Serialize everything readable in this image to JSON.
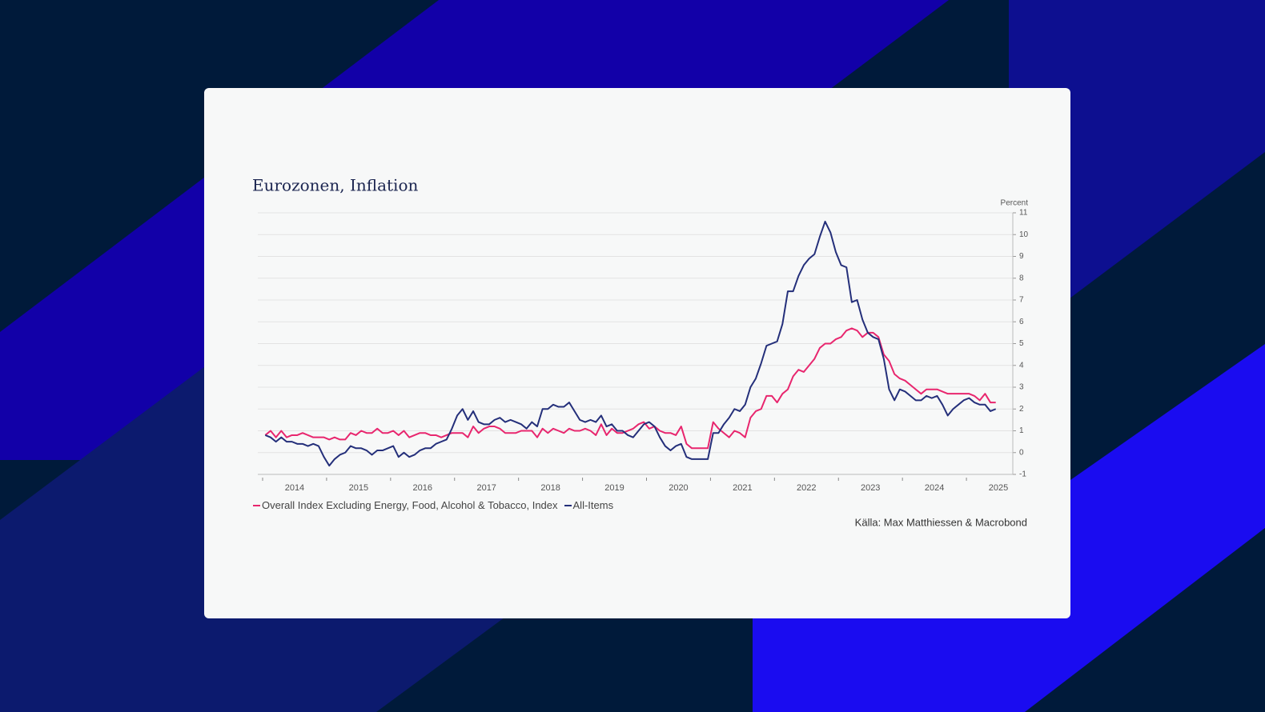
{
  "chart_data": {
    "type": "line",
    "title": "Eurozonen, Inflation",
    "y_label": "Percent",
    "source": "Källa: Max Matthiessen & Macrobond",
    "categories": [
      null,
      null,
      null,
      null,
      null,
      null,
      "2014",
      null,
      null,
      null,
      null,
      null,
      null,
      null,
      null,
      null,
      null,
      null,
      "2015",
      null,
      null,
      null,
      null,
      null,
      null,
      null,
      null,
      null,
      null,
      null,
      "2016",
      null,
      null,
      null,
      null,
      null,
      null,
      null,
      null,
      null,
      null,
      null,
      "2017",
      null,
      null,
      null,
      null,
      null,
      null,
      null,
      null,
      null,
      null,
      null,
      "2018",
      null,
      null,
      null,
      null,
      null,
      null,
      null,
      null,
      null,
      null,
      null,
      "2019",
      null,
      null,
      null,
      null,
      null,
      null,
      null,
      null,
      null,
      null,
      null,
      "2020",
      null,
      null,
      null,
      null,
      null,
      null,
      null,
      null,
      null,
      null,
      null,
      "2021",
      null,
      null,
      null,
      null,
      null,
      null,
      null,
      null,
      null,
      null,
      null,
      "2022",
      null,
      null,
      null,
      null,
      null,
      null,
      null,
      null,
      null,
      null,
      null,
      "2023",
      null,
      null,
      null,
      null,
      null,
      null,
      null,
      null,
      null,
      null,
      null,
      "2024",
      null,
      null,
      null,
      null,
      null,
      null,
      null,
      null,
      null,
      null,
      null,
      "2025",
      null,
      null,
      null,
      null,
      null
    ],
    "series": [
      {
        "name": "Overall Index Excluding Energy, Food, Alcohol & Tobacco, Index",
        "color": "#e8266e",
        "values": [
          0.8,
          1.0,
          0.7,
          1.0,
          0.7,
          0.8,
          0.8,
          0.9,
          0.8,
          0.7,
          0.7,
          0.7,
          0.6,
          0.7,
          0.6,
          0.6,
          0.9,
          0.8,
          1.0,
          0.9,
          0.9,
          1.1,
          0.9,
          0.9,
          1.0,
          0.8,
          1.0,
          0.7,
          0.8,
          0.9,
          0.9,
          0.8,
          0.8,
          0.7,
          0.8,
          0.9,
          0.9,
          0.9,
          0.7,
          1.2,
          0.9,
          1.1,
          1.2,
          1.2,
          1.1,
          0.9,
          0.9,
          0.9,
          1.0,
          1.0,
          1.0,
          0.7,
          1.1,
          0.9,
          1.1,
          1.0,
          0.9,
          1.1,
          1.0,
          1.0,
          1.1,
          1.0,
          0.8,
          1.3,
          0.8,
          1.1,
          0.9,
          0.9,
          1.0,
          1.1,
          1.3,
          1.4,
          1.1,
          1.2,
          1.0,
          0.9,
          0.9,
          0.8,
          1.2,
          0.4,
          0.2,
          0.2,
          0.2,
          0.2,
          1.4,
          1.1,
          0.9,
          0.7,
          1.0,
          0.9,
          0.7,
          1.6,
          1.9,
          2.0,
          2.6,
          2.6,
          2.3,
          2.7,
          2.9,
          3.5,
          3.8,
          3.7,
          4.0,
          4.3,
          4.8,
          5.0,
          5.0,
          5.2,
          5.3,
          5.6,
          5.7,
          5.6,
          5.3,
          5.5,
          5.5,
          5.3,
          4.5,
          4.2,
          3.6,
          3.4,
          3.3,
          3.1,
          2.9,
          2.7,
          2.9,
          2.9,
          2.9,
          2.8,
          2.7,
          2.7,
          2.7,
          2.7,
          2.7,
          2.6,
          2.4,
          2.7,
          2.3,
          2.3,
          null,
          null,
          null,
          null,
          null,
          null
        ]
      },
      {
        "name": "All-Items",
        "color": "#242f7a",
        "values": [
          0.8,
          0.7,
          0.5,
          0.7,
          0.5,
          0.5,
          0.4,
          0.4,
          0.3,
          0.4,
          0.3,
          -0.2,
          -0.6,
          -0.3,
          -0.1,
          0.0,
          0.3,
          0.2,
          0.2,
          0.1,
          -0.1,
          0.1,
          0.1,
          0.2,
          0.3,
          -0.2,
          0.0,
          -0.2,
          -0.1,
          0.1,
          0.2,
          0.2,
          0.4,
          0.5,
          0.6,
          1.1,
          1.7,
          2.0,
          1.5,
          1.9,
          1.4,
          1.3,
          1.3,
          1.5,
          1.6,
          1.4,
          1.5,
          1.4,
          1.3,
          1.1,
          1.4,
          1.2,
          2.0,
          2.0,
          2.2,
          2.1,
          2.1,
          2.3,
          1.9,
          1.5,
          1.4,
          1.5,
          1.4,
          1.7,
          1.2,
          1.3,
          1.0,
          1.0,
          0.8,
          0.7,
          1.0,
          1.3,
          1.4,
          1.2,
          0.7,
          0.3,
          0.1,
          0.3,
          0.4,
          -0.2,
          -0.3,
          -0.3,
          -0.3,
          -0.3,
          0.9,
          0.9,
          1.3,
          1.6,
          2.0,
          1.9,
          2.2,
          3.0,
          3.4,
          4.1,
          4.9,
          5.0,
          5.1,
          5.9,
          7.4,
          7.4,
          8.1,
          8.6,
          8.9,
          9.1,
          9.9,
          10.6,
          10.1,
          9.2,
          8.6,
          8.5,
          6.9,
          7.0,
          6.1,
          5.5,
          5.3,
          5.2,
          4.3,
          2.9,
          2.4,
          2.9,
          2.8,
          2.6,
          2.4,
          2.4,
          2.6,
          2.5,
          2.6,
          2.2,
          1.7,
          2.0,
          2.2,
          2.4,
          2.5,
          2.3,
          2.2,
          2.2,
          1.9,
          2.0,
          null,
          null,
          null,
          null,
          null,
          null
        ]
      }
    ],
    "ylim": [
      -1,
      11
    ],
    "yticks": [
      -1,
      0,
      1,
      2,
      3,
      4,
      5,
      6,
      7,
      8,
      9,
      10,
      11
    ],
    "grid": true
  }
}
